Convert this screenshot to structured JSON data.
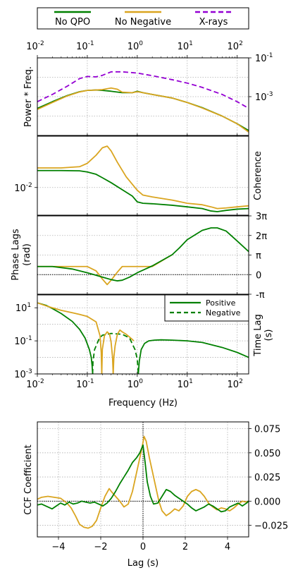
{
  "colors": {
    "no_qpo": "#008000",
    "no_negative": "#DAA520",
    "xrays": "#9400D3",
    "grid": "#b0b0b0"
  },
  "legend": {
    "items": [
      {
        "label": "No QPO",
        "color": "#008000",
        "style": "solid"
      },
      {
        "label": "No Negative",
        "color": "#DAA520",
        "style": "solid"
      },
      {
        "label": "X-rays",
        "color": "#9400D3",
        "style": "dashed"
      }
    ]
  },
  "chart_data": [
    {
      "panel": "power",
      "type": "line",
      "ylabel": "Power * Freq.",
      "xscale": "log",
      "yscale": "log",
      "xlim": [
        0.01,
        170
      ],
      "ylim": [
        1e-05,
        0.1
      ],
      "x_top_ticks": [
        "10",
        "10",
        "10",
        "10",
        "10",
        "10"
      ],
      "x_top_tick_exponents": [
        "-2",
        "-1",
        "0",
        "1",
        "2",
        ""
      ],
      "y_ticks_right": [
        {
          "base": "10",
          "exp": "-1",
          "value": 0.1
        },
        {
          "base": "10",
          "exp": "-3",
          "value": 0.001
        }
      ],
      "grid": true,
      "series": [
        {
          "name": "X-rays",
          "style": "dashed",
          "color": "#9400D3",
          "x": [
            0.01,
            0.02,
            0.04,
            0.07,
            0.1,
            0.15,
            0.2,
            0.3,
            0.5,
            1.0,
            2,
            5,
            10,
            20,
            50,
            100,
            170
          ],
          "y": [
            0.00055,
            0.0013,
            0.0035,
            0.0085,
            0.011,
            0.0105,
            0.0125,
            0.019,
            0.019,
            0.0165,
            0.012,
            0.0075,
            0.005,
            0.003,
            0.0013,
            0.00055,
            0.00025
          ]
        },
        {
          "name": "No QPO",
          "style": "solid",
          "color": "#008000",
          "x": [
            0.01,
            0.02,
            0.04,
            0.07,
            0.1,
            0.15,
            0.2,
            0.3,
            0.5,
            0.8,
            1.0,
            1.3,
            2,
            5,
            10,
            20,
            50,
            100,
            170
          ],
          "y": [
            0.00025,
            0.00055,
            0.00115,
            0.0018,
            0.0021,
            0.0022,
            0.0021,
            0.0019,
            0.0016,
            0.0016,
            0.0019,
            0.0016,
            0.0013,
            0.00085,
            0.0005,
            0.00027,
            0.0001,
            4e-05,
            1.8e-05
          ]
        },
        {
          "name": "No Negative",
          "style": "solid",
          "color": "#DAA520",
          "x": [
            0.01,
            0.02,
            0.04,
            0.07,
            0.1,
            0.15,
            0.2,
            0.3,
            0.4,
            0.5,
            0.8,
            1.0,
            1.3,
            2,
            5,
            10,
            20,
            50,
            100,
            170
          ],
          "y": [
            0.00022,
            0.0005,
            0.0011,
            0.00175,
            0.0021,
            0.0022,
            0.0023,
            0.0028,
            0.0024,
            0.0017,
            0.0016,
            0.0018,
            0.0016,
            0.0013,
            0.00085,
            0.0005,
            0.00026,
            0.0001,
            4e-05,
            1.5e-05
          ]
        }
      ]
    },
    {
      "panel": "coherence",
      "type": "line",
      "ylabel": "Coherence",
      "xscale": "log",
      "yscale": "log",
      "xlim": [
        0.01,
        170
      ],
      "ylim": [
        0.0035,
        0.07
      ],
      "y_ticks_left": [
        {
          "base": "10",
          "exp": "-2",
          "value": 0.01
        }
      ],
      "grid": true,
      "series": [
        {
          "name": "No Negative",
          "style": "solid",
          "color": "#DAA520",
          "x": [
            0.01,
            0.03,
            0.07,
            0.1,
            0.15,
            0.2,
            0.25,
            0.3,
            0.4,
            0.6,
            1.0,
            1.3,
            2,
            5,
            10,
            20,
            30,
            40,
            60,
            100,
            170
          ],
          "y": [
            0.021,
            0.021,
            0.022,
            0.025,
            0.034,
            0.045,
            0.048,
            0.04,
            0.026,
            0.015,
            0.009,
            0.0075,
            0.007,
            0.0062,
            0.0055,
            0.0052,
            0.0048,
            0.0045,
            0.0046,
            0.0048,
            0.005
          ]
        },
        {
          "name": "No QPO",
          "style": "solid",
          "color": "#008000",
          "x": [
            0.01,
            0.03,
            0.07,
            0.1,
            0.15,
            0.2,
            0.3,
            0.5,
            0.8,
            1.0,
            1.3,
            2,
            5,
            10,
            20,
            30,
            40,
            60,
            100,
            170
          ],
          "y": [
            0.019,
            0.019,
            0.0188,
            0.018,
            0.0165,
            0.0145,
            0.012,
            0.0092,
            0.0072,
            0.0058,
            0.0055,
            0.0054,
            0.0051,
            0.0048,
            0.0045,
            0.0041,
            0.004,
            0.0042,
            0.0044,
            0.0045
          ]
        }
      ]
    },
    {
      "panel": "phase_lags",
      "type": "line",
      "ylabel": "Phase Lags",
      "ylabel2": "(rad)",
      "xscale": "log",
      "yscale": "linear",
      "xlim": [
        0.01,
        170
      ],
      "ylim": [
        -3.1416,
        9.4248
      ],
      "y_ticks_right": [
        {
          "label": "-π",
          "value": -3.1416
        },
        {
          "label": "0",
          "value": 0
        },
        {
          "label": "π",
          "value": 3.1416
        },
        {
          "label": "2π",
          "value": 6.2832
        },
        {
          "label": "3π",
          "value": 9.4248
        }
      ],
      "zero_line": true,
      "grid": true,
      "series": [
        {
          "name": "No Negative",
          "style": "solid",
          "color": "#DAA520",
          "x": [
            0.01,
            0.02,
            0.05,
            0.1,
            0.15,
            0.2,
            0.25,
            0.3,
            0.4,
            0.5,
            1.0,
            2.0,
            5.0
          ],
          "y": [
            1.3,
            1.3,
            1.3,
            1.3,
            0.6,
            -0.7,
            -1.6,
            -0.9,
            0.4,
            1.3,
            1.3,
            1.3,
            3.2
          ]
        },
        {
          "name": "No QPO",
          "style": "solid",
          "color": "#008000",
          "x": [
            0.01,
            0.02,
            0.05,
            0.1,
            0.2,
            0.3,
            0.4,
            0.5,
            0.7,
            1.0,
            2,
            5,
            7,
            10,
            20,
            30,
            40,
            60,
            100,
            170
          ],
          "y": [
            1.3,
            1.3,
            0.9,
            0.3,
            -0.4,
            -0.8,
            -1.0,
            -0.9,
            -0.4,
            0.3,
            1.4,
            3.2,
            4.3,
            5.6,
            7.1,
            7.5,
            7.5,
            7.0,
            5.4,
            3.7
          ]
        }
      ]
    },
    {
      "panel": "time_lag",
      "type": "line",
      "ylabel": "Time Lag",
      "ylabel2": "(s)",
      "xlabel": "Frequency (Hz)",
      "xscale": "log",
      "yscale": "log",
      "xlim": [
        0.01,
        170
      ],
      "ylim": [
        0.001,
        60
      ],
      "y_ticks_left": [
        {
          "base": "10",
          "exp": "1",
          "value": 10
        },
        {
          "base": "10",
          "exp": "-1",
          "value": 0.1
        },
        {
          "base": "10",
          "exp": "-3",
          "value": 0.001
        }
      ],
      "x_bottom_ticks": [
        "10",
        "10",
        "10",
        "10",
        "10"
      ],
      "x_bottom_tick_exponents": [
        "-2",
        "-1",
        "0",
        "1",
        "2"
      ],
      "legend": {
        "items": [
          {
            "label": "Positive",
            "style": "solid",
            "color": "#008000"
          },
          {
            "label": "Negative",
            "style": "dashed",
            "color": "#008000"
          }
        ]
      },
      "grid": true,
      "series": [
        {
          "name": "No QPO positive low",
          "style": "solid",
          "color": "#008000",
          "x": [
            0.01,
            0.015,
            0.02,
            0.03,
            0.05,
            0.07,
            0.09,
            0.11,
            0.12,
            0.125,
            0.128
          ],
          "y": [
            20,
            14,
            9,
            4.5,
            1.5,
            0.5,
            0.15,
            0.03,
            0.01,
            0.003,
            0.001
          ]
        },
        {
          "name": "No QPO negative",
          "style": "dashed",
          "color": "#008000",
          "x": [
            0.128,
            0.13,
            0.14,
            0.17,
            0.2,
            0.3,
            0.5,
            0.7,
            0.9,
            1.0,
            1.05
          ],
          "y": [
            0.001,
            0.006,
            0.03,
            0.12,
            0.22,
            0.28,
            0.25,
            0.15,
            0.03,
            0.008,
            0.001
          ]
        },
        {
          "name": "No QPO positive high",
          "style": "solid",
          "color": "#008000",
          "x": [
            1.05,
            1.1,
            1.2,
            1.4,
            1.7,
            2.2,
            3,
            5,
            10,
            20,
            50,
            100,
            170
          ],
          "y": [
            0.001,
            0.006,
            0.03,
            0.07,
            0.1,
            0.11,
            0.115,
            0.11,
            0.1,
            0.08,
            0.04,
            0.02,
            0.01
          ]
        },
        {
          "name": "No Negative",
          "style": "solid",
          "color": "#DAA520",
          "x": [
            0.01,
            0.015,
            0.02,
            0.03,
            0.05,
            0.07,
            0.1,
            0.15,
            0.18,
            0.19,
            0.195
          ],
          "y": [
            20,
            13,
            10,
            7,
            5,
            4,
            3,
            1.4,
            0.2,
            0.02,
            0.001
          ]
        },
        {
          "name": "No Negative 2",
          "style": "solid",
          "color": "#DAA520",
          "x": [
            0.195,
            0.2,
            0.22,
            0.25,
            0.28,
            0.3,
            0.32,
            0.33
          ],
          "y": [
            0.001,
            0.03,
            0.2,
            0.35,
            0.25,
            0.08,
            0.01,
            0.001
          ]
        },
        {
          "name": "No Negative 3",
          "style": "solid",
          "color": "#DAA520",
          "x": [
            0.33,
            0.34,
            0.36,
            0.4,
            0.45,
            0.5,
            0.6,
            0.7,
            0.8,
            0.85
          ],
          "y": [
            0.001,
            0.01,
            0.05,
            0.25,
            0.45,
            0.35,
            0.25,
            0.17,
            0.12,
            0.1
          ]
        }
      ]
    },
    {
      "panel": "ccf",
      "type": "line",
      "ylabel": "CCF Coefficient",
      "xlabel": "Lag (s)",
      "xscale": "linear",
      "yscale": "linear",
      "xlim": [
        -5,
        5
      ],
      "ylim": [
        -0.037,
        0.082
      ],
      "x_ticks": [
        {
          "label": "−4",
          "value": -4
        },
        {
          "label": "−2",
          "value": -2
        },
        {
          "label": "0",
          "value": 0
        },
        {
          "label": "2",
          "value": 2
        },
        {
          "label": "4",
          "value": 4
        }
      ],
      "y_ticks_right": [
        {
          "label": "−0.025",
          "value": -0.025
        },
        {
          "label": "0.000",
          "value": 0
        },
        {
          "label": "0.025",
          "value": 0.025
        },
        {
          "label": "0.050",
          "value": 0.05
        },
        {
          "label": "0.075",
          "value": 0.075
        }
      ],
      "zero_lines": true,
      "grid": true,
      "series": [
        {
          "name": "No Negative",
          "style": "solid",
          "color": "#DAA520",
          "x": [
            -5.0,
            -4.8,
            -4.5,
            -4.2,
            -3.9,
            -3.6,
            -3.4,
            -3.2,
            -3.0,
            -2.8,
            -2.6,
            -2.4,
            -2.2,
            -2.0,
            -1.8,
            -1.6,
            -1.5,
            -1.3,
            -1.1,
            -0.9,
            -0.7,
            -0.5,
            -0.35,
            -0.2,
            -0.05,
            0.05,
            0.15,
            0.3,
            0.45,
            0.6,
            0.75,
            0.9,
            1.1,
            1.3,
            1.5,
            1.7,
            1.9,
            2.1,
            2.3,
            2.5,
            2.7,
            2.9,
            3.1,
            3.3,
            3.5,
            3.7,
            3.9,
            4.1,
            4.3,
            4.5,
            4.7,
            4.9,
            5.0
          ],
          "y": [
            0.002,
            0.004,
            0.005,
            0.004,
            0.003,
            -0.002,
            -0.007,
            -0.015,
            -0.024,
            -0.027,
            -0.028,
            -0.026,
            -0.02,
            -0.007,
            0.005,
            0.013,
            0.01,
            0.005,
            0.0,
            -0.006,
            -0.003,
            0.01,
            0.025,
            0.04,
            0.055,
            0.067,
            0.062,
            0.045,
            0.03,
            0.015,
            0.0,
            -0.01,
            -0.015,
            -0.012,
            -0.008,
            -0.01,
            -0.005,
            0.005,
            0.01,
            0.012,
            0.01,
            0.005,
            -0.002,
            -0.006,
            -0.009,
            -0.007,
            -0.008,
            -0.01,
            -0.007,
            -0.003,
            0.0,
            -0.001,
            0.0
          ]
        },
        {
          "name": "No QPO",
          "style": "solid",
          "color": "#008000",
          "x": [
            -5.0,
            -4.8,
            -4.5,
            -4.3,
            -4.1,
            -3.9,
            -3.7,
            -3.5,
            -3.3,
            -3.1,
            -2.9,
            -2.7,
            -2.5,
            -2.3,
            -2.1,
            -1.9,
            -1.7,
            -1.5,
            -1.3,
            -1.1,
            -0.9,
            -0.7,
            -0.5,
            -0.3,
            -0.15,
            0.0,
            0.1,
            0.2,
            0.35,
            0.5,
            0.7,
            0.9,
            1.1,
            1.3,
            1.5,
            1.7,
            1.9,
            2.1,
            2.3,
            2.5,
            2.7,
            2.9,
            3.1,
            3.3,
            3.5,
            3.7,
            3.9,
            4.1,
            4.3,
            4.5,
            4.7,
            4.9,
            5.0
          ],
          "y": [
            -0.004,
            -0.003,
            -0.006,
            -0.008,
            -0.005,
            -0.002,
            -0.004,
            -0.001,
            -0.003,
            -0.002,
            0.0,
            -0.001,
            -0.002,
            -0.001,
            -0.003,
            -0.005,
            -0.002,
            0.003,
            0.01,
            0.018,
            0.025,
            0.032,
            0.04,
            0.045,
            0.05,
            0.058,
            0.04,
            0.02,
            0.005,
            -0.003,
            -0.002,
            0.005,
            0.012,
            0.01,
            0.006,
            0.003,
            0.0,
            -0.003,
            -0.007,
            -0.01,
            -0.008,
            -0.006,
            -0.003,
            -0.005,
            -0.008,
            -0.011,
            -0.01,
            -0.006,
            -0.004,
            -0.002,
            -0.005,
            -0.002,
            0.0
          ]
        }
      ]
    }
  ]
}
